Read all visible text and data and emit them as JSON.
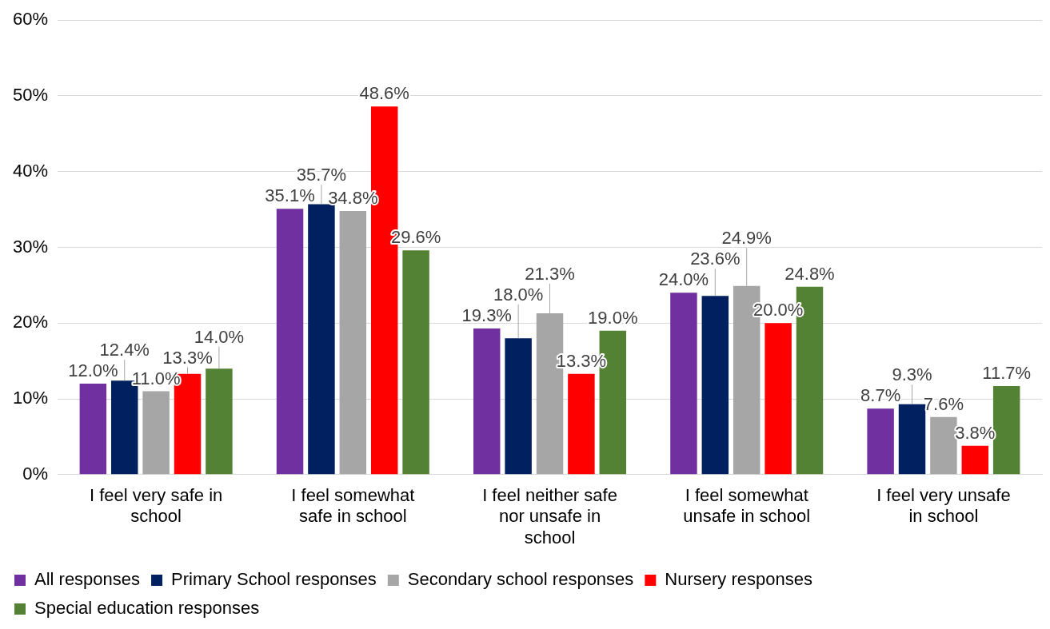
{
  "chart_data": {
    "type": "bar",
    "categories": [
      "I feel very safe in school",
      "I feel somewhat safe in school",
      "I feel neither safe nor unsafe in school",
      "I feel somewhat unsafe in school",
      "I feel very unsafe in school"
    ],
    "series": [
      {
        "name": "All responses",
        "color": "#7030a0",
        "values": [
          12.0,
          35.1,
          19.3,
          24.0,
          8.7
        ],
        "value_labels": [
          "12.0%",
          "35.1%",
          "19.3%",
          "24.0%",
          "8.7%"
        ]
      },
      {
        "name": "Primary School responses",
        "color": "#002060",
        "values": [
          12.4,
          35.7,
          18.0,
          23.6,
          9.3
        ],
        "value_labels": [
          "12.4%",
          "35.7%",
          "18.0%",
          "23.6%",
          "9.3%"
        ]
      },
      {
        "name": "Secondary school responses",
        "color": "#a6a6a6",
        "values": [
          11.0,
          34.8,
          21.3,
          24.9,
          7.6
        ],
        "value_labels": [
          "11.0%",
          "34.8%",
          "21.3%",
          "24.9%",
          "7.6%"
        ]
      },
      {
        "name": "Nursery responses",
        "color": "#ff0000",
        "values": [
          13.3,
          48.6,
          13.3,
          20.0,
          3.8
        ],
        "value_labels": [
          "13.3%",
          "48.6%",
          "13.3%",
          "20.0%",
          "3.8%"
        ]
      },
      {
        "name": "Special education responses",
        "color": "#548235",
        "values": [
          14.0,
          29.6,
          19.0,
          24.8,
          11.7
        ],
        "value_labels": [
          "14.0%",
          "29.6%",
          "19.0%",
          "24.8%",
          "11.7%"
        ]
      }
    ],
    "ylim": [
      0,
      60
    ],
    "yticks": [
      {
        "value": 0,
        "label": "0%"
      },
      {
        "value": 10,
        "label": "10%"
      },
      {
        "value": 20,
        "label": "20%"
      },
      {
        "value": 30,
        "label": "30%"
      },
      {
        "value": 40,
        "label": "40%"
      },
      {
        "value": 50,
        "label": "50%"
      },
      {
        "value": 60,
        "label": "60%"
      }
    ],
    "grid": "y",
    "legend": "bottom"
  }
}
